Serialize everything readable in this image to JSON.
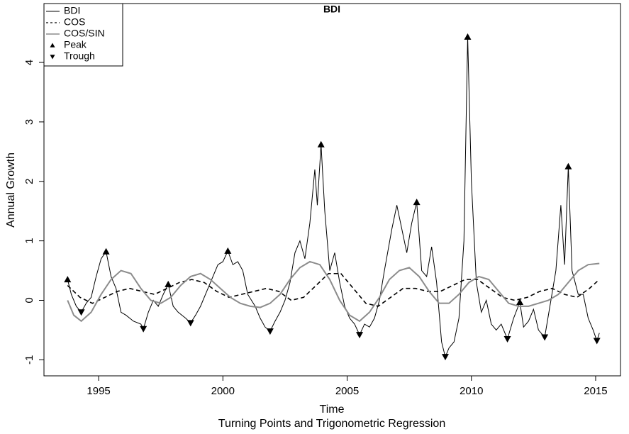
{
  "chart_data": {
    "type": "line",
    "title": "BDI",
    "xlabel": "Time",
    "subtitle": "Turning Points and Trigonometric Regression",
    "ylabel": "Annual Growth",
    "xlim": [
      1992.8,
      2016.0
    ],
    "ylim": [
      -1.27,
      4.99
    ],
    "xticks": [
      1995,
      2000,
      2005,
      2010,
      2015
    ],
    "yticks": [
      -1,
      0,
      1,
      2,
      3,
      4
    ],
    "legend": "top-left",
    "series": [
      {
        "name": "BDI",
        "color": "#000000",
        "style": "solid",
        "width": 1,
        "x": [
          1993.75,
          1993.9,
          1994.1,
          1994.3,
          1994.5,
          1994.7,
          1994.9,
          1995.1,
          1995.3,
          1995.5,
          1995.7,
          1995.9,
          1996.1,
          1996.4,
          1996.7,
          1996.8,
          1997.0,
          1997.2,
          1997.4,
          1997.6,
          1997.8,
          1998.0,
          1998.2,
          1998.5,
          1998.7,
          1998.9,
          1999.1,
          1999.4,
          1999.6,
          1999.8,
          2000.0,
          2000.2,
          2000.4,
          2000.6,
          2000.8,
          2001.0,
          2001.3,
          2001.5,
          2001.7,
          2001.9,
          2002.1,
          2002.3,
          2002.5,
          2002.7,
          2002.9,
          2003.1,
          2003.3,
          2003.5,
          2003.7,
          2003.8,
          2003.95,
          2004.1,
          2004.3,
          2004.5,
          2004.7,
          2004.9,
          2005.1,
          2005.3,
          2005.5,
          2005.7,
          2005.9,
          2006.1,
          2006.3,
          2006.5,
          2006.8,
          2007.0,
          2007.2,
          2007.4,
          2007.6,
          2007.8,
          2008.0,
          2008.2,
          2008.4,
          2008.6,
          2008.8,
          2008.95,
          2009.1,
          2009.3,
          2009.5,
          2009.7,
          2009.85,
          2010.0,
          2010.2,
          2010.4,
          2010.6,
          2010.8,
          2011.0,
          2011.2,
          2011.45,
          2011.7,
          2011.95,
          2012.1,
          2012.3,
          2012.5,
          2012.7,
          2012.95,
          2013.2,
          2013.4,
          2013.6,
          2013.75,
          2013.9,
          2014.05,
          2014.3,
          2014.5,
          2014.7,
          2014.9,
          2015.05,
          2015.15
        ],
        "values": [
          0.35,
          0.1,
          -0.1,
          -0.2,
          -0.05,
          0.05,
          0.4,
          0.7,
          0.82,
          0.4,
          0.2,
          -0.2,
          -0.25,
          -0.35,
          -0.4,
          -0.48,
          -0.2,
          0.0,
          -0.1,
          0.1,
          0.27,
          -0.1,
          -0.2,
          -0.3,
          -0.38,
          -0.25,
          -0.1,
          0.2,
          0.4,
          0.6,
          0.65,
          0.83,
          0.6,
          0.65,
          0.5,
          0.1,
          -0.1,
          -0.3,
          -0.45,
          -0.52,
          -0.35,
          -0.2,
          0.0,
          0.3,
          0.8,
          1.0,
          0.7,
          1.3,
          2.2,
          1.6,
          2.62,
          1.5,
          0.5,
          0.8,
          0.3,
          -0.1,
          -0.3,
          -0.4,
          -0.58,
          -0.4,
          -0.45,
          -0.3,
          0.0,
          0.5,
          1.2,
          1.6,
          1.2,
          0.8,
          1.3,
          1.65,
          0.5,
          0.4,
          0.9,
          0.3,
          -0.7,
          -0.95,
          -0.8,
          -0.7,
          -0.3,
          1.0,
          4.43,
          2.0,
          0.3,
          -0.2,
          0.0,
          -0.4,
          -0.5,
          -0.4,
          -0.65,
          -0.3,
          -0.03,
          -0.45,
          -0.35,
          -0.15,
          -0.5,
          -0.62,
          0.0,
          0.5,
          1.6,
          0.6,
          2.25,
          0.5,
          0.1,
          0.1,
          -0.3,
          -0.5,
          -0.68,
          -0.55
        ]
      },
      {
        "name": "COS",
        "color": "#000000",
        "style": "dashed",
        "width": 1.6,
        "x": [
          1993.75,
          1994.25,
          1994.75,
          1995.25,
          1995.75,
          1996.25,
          1996.75,
          1997.25,
          1997.75,
          1998.25,
          1998.75,
          1999.25,
          1999.75,
          2000.25,
          2000.75,
          2001.25,
          2001.75,
          2002.25,
          2002.75,
          2003.25,
          2003.75,
          2004.25,
          2004.75,
          2005.25,
          2005.75,
          2006.25,
          2006.75,
          2007.25,
          2007.75,
          2008.25,
          2008.75,
          2009.25,
          2009.75,
          2010.25,
          2010.75,
          2011.25,
          2011.75,
          2012.25,
          2012.75,
          2013.25,
          2013.75,
          2014.25,
          2014.75,
          2015.15
        ],
        "values": [
          0.25,
          0.05,
          -0.05,
          0.05,
          0.15,
          0.2,
          0.15,
          0.1,
          0.2,
          0.3,
          0.35,
          0.3,
          0.15,
          0.05,
          0.1,
          0.15,
          0.2,
          0.15,
          0.0,
          0.05,
          0.25,
          0.45,
          0.45,
          0.2,
          -0.05,
          -0.1,
          0.05,
          0.2,
          0.2,
          0.15,
          0.15,
          0.25,
          0.35,
          0.35,
          0.2,
          0.05,
          0.0,
          0.05,
          0.15,
          0.2,
          0.1,
          0.05,
          0.2,
          0.35
        ]
      },
      {
        "name": "COS/SIN",
        "color": "#8c8c8c",
        "style": "solid",
        "width": 2,
        "x": [
          1993.75,
          1994.0,
          1994.3,
          1994.7,
          1995.1,
          1995.5,
          1995.9,
          1996.3,
          1996.7,
          1997.1,
          1997.5,
          1997.9,
          1998.3,
          1998.7,
          1999.1,
          1999.5,
          1999.9,
          2000.3,
          2000.7,
          2001.1,
          2001.5,
          2001.9,
          2002.3,
          2002.7,
          2003.1,
          2003.5,
          2003.9,
          2004.3,
          2004.7,
          2005.1,
          2005.5,
          2005.9,
          2006.3,
          2006.7,
          2007.1,
          2007.5,
          2007.9,
          2008.3,
          2008.7,
          2009.1,
          2009.5,
          2009.9,
          2010.3,
          2010.7,
          2011.1,
          2011.5,
          2011.9,
          2012.3,
          2012.7,
          2013.1,
          2013.5,
          2013.9,
          2014.3,
          2014.7,
          2015.15
        ],
        "values": [
          0.0,
          -0.25,
          -0.35,
          -0.2,
          0.1,
          0.35,
          0.5,
          0.45,
          0.2,
          0.0,
          -0.05,
          0.05,
          0.25,
          0.4,
          0.45,
          0.35,
          0.2,
          0.05,
          -0.05,
          -0.1,
          -0.12,
          -0.05,
          0.1,
          0.35,
          0.55,
          0.65,
          0.6,
          0.35,
          0.0,
          -0.25,
          -0.35,
          -0.2,
          0.05,
          0.35,
          0.5,
          0.55,
          0.4,
          0.15,
          -0.05,
          -0.05,
          0.1,
          0.3,
          0.4,
          0.35,
          0.15,
          -0.05,
          -0.1,
          -0.1,
          -0.05,
          0.0,
          0.1,
          0.3,
          0.5,
          0.6,
          0.62
        ]
      },
      {
        "name": "Peak",
        "color": "#000000",
        "marker": "triangle-up",
        "x": [
          1993.75,
          1995.3,
          1997.8,
          2000.2,
          2003.95,
          2007.8,
          2009.85,
          2011.95,
          2013.9
        ],
        "values": [
          0.35,
          0.82,
          0.27,
          0.83,
          2.62,
          1.65,
          4.43,
          -0.03,
          2.25
        ]
      },
      {
        "name": "Trough",
        "color": "#000000",
        "marker": "triangle-down",
        "x": [
          1994.3,
          1996.8,
          1998.7,
          2001.9,
          2005.5,
          2008.95,
          2011.45,
          2012.95,
          2015.05
        ],
        "values": [
          -0.2,
          -0.48,
          -0.38,
          -0.52,
          -0.58,
          -0.95,
          -0.65,
          -0.62,
          -0.68
        ]
      }
    ]
  }
}
